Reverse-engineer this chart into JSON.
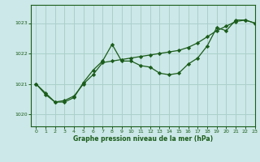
{
  "title": "Graphe pression niveau de la mer (hPa)",
  "bg_color": "#cce8e8",
  "grid_color": "#aad0cc",
  "line_color": "#1a5c1a",
  "xlim": [
    -0.5,
    23
  ],
  "ylim": [
    1019.6,
    1023.6
  ],
  "yticks": [
    1020,
    1021,
    1022,
    1023
  ],
  "xticks": [
    0,
    1,
    2,
    3,
    4,
    5,
    6,
    7,
    8,
    9,
    10,
    11,
    12,
    13,
    14,
    15,
    16,
    17,
    18,
    19,
    20,
    21,
    22,
    23
  ],
  "series_zigzag_x": [
    0,
    1,
    2,
    3,
    4,
    5,
    6,
    7,
    8,
    9,
    10,
    11,
    12,
    13,
    14,
    15,
    16,
    17,
    18,
    19,
    20,
    21,
    22,
    23
  ],
  "series_zigzag_y": [
    1021.0,
    1020.65,
    1020.4,
    1020.4,
    1020.55,
    1021.05,
    1021.45,
    1021.75,
    1022.3,
    1021.75,
    1021.75,
    1021.6,
    1021.55,
    1021.35,
    1021.3,
    1021.35,
    1021.65,
    1021.85,
    1022.25,
    1022.85,
    1022.75,
    1023.1,
    1023.1,
    1023.0
  ],
  "series_trend_x": [
    0,
    1,
    2,
    3,
    4,
    5,
    6,
    7,
    8,
    9,
    10,
    11,
    12,
    13,
    14,
    15,
    16,
    17,
    18,
    19,
    20,
    21,
    22,
    23
  ],
  "series_trend_y": [
    1021.0,
    1020.7,
    1020.4,
    1020.45,
    1020.6,
    1021.0,
    1021.3,
    1021.7,
    1021.75,
    1021.8,
    1021.85,
    1021.9,
    1021.95,
    1022.0,
    1022.05,
    1022.1,
    1022.2,
    1022.35,
    1022.55,
    1022.75,
    1022.9,
    1023.05,
    1023.1,
    1023.0
  ],
  "figwidth": 3.2,
  "figheight": 2.0,
  "dpi": 100
}
